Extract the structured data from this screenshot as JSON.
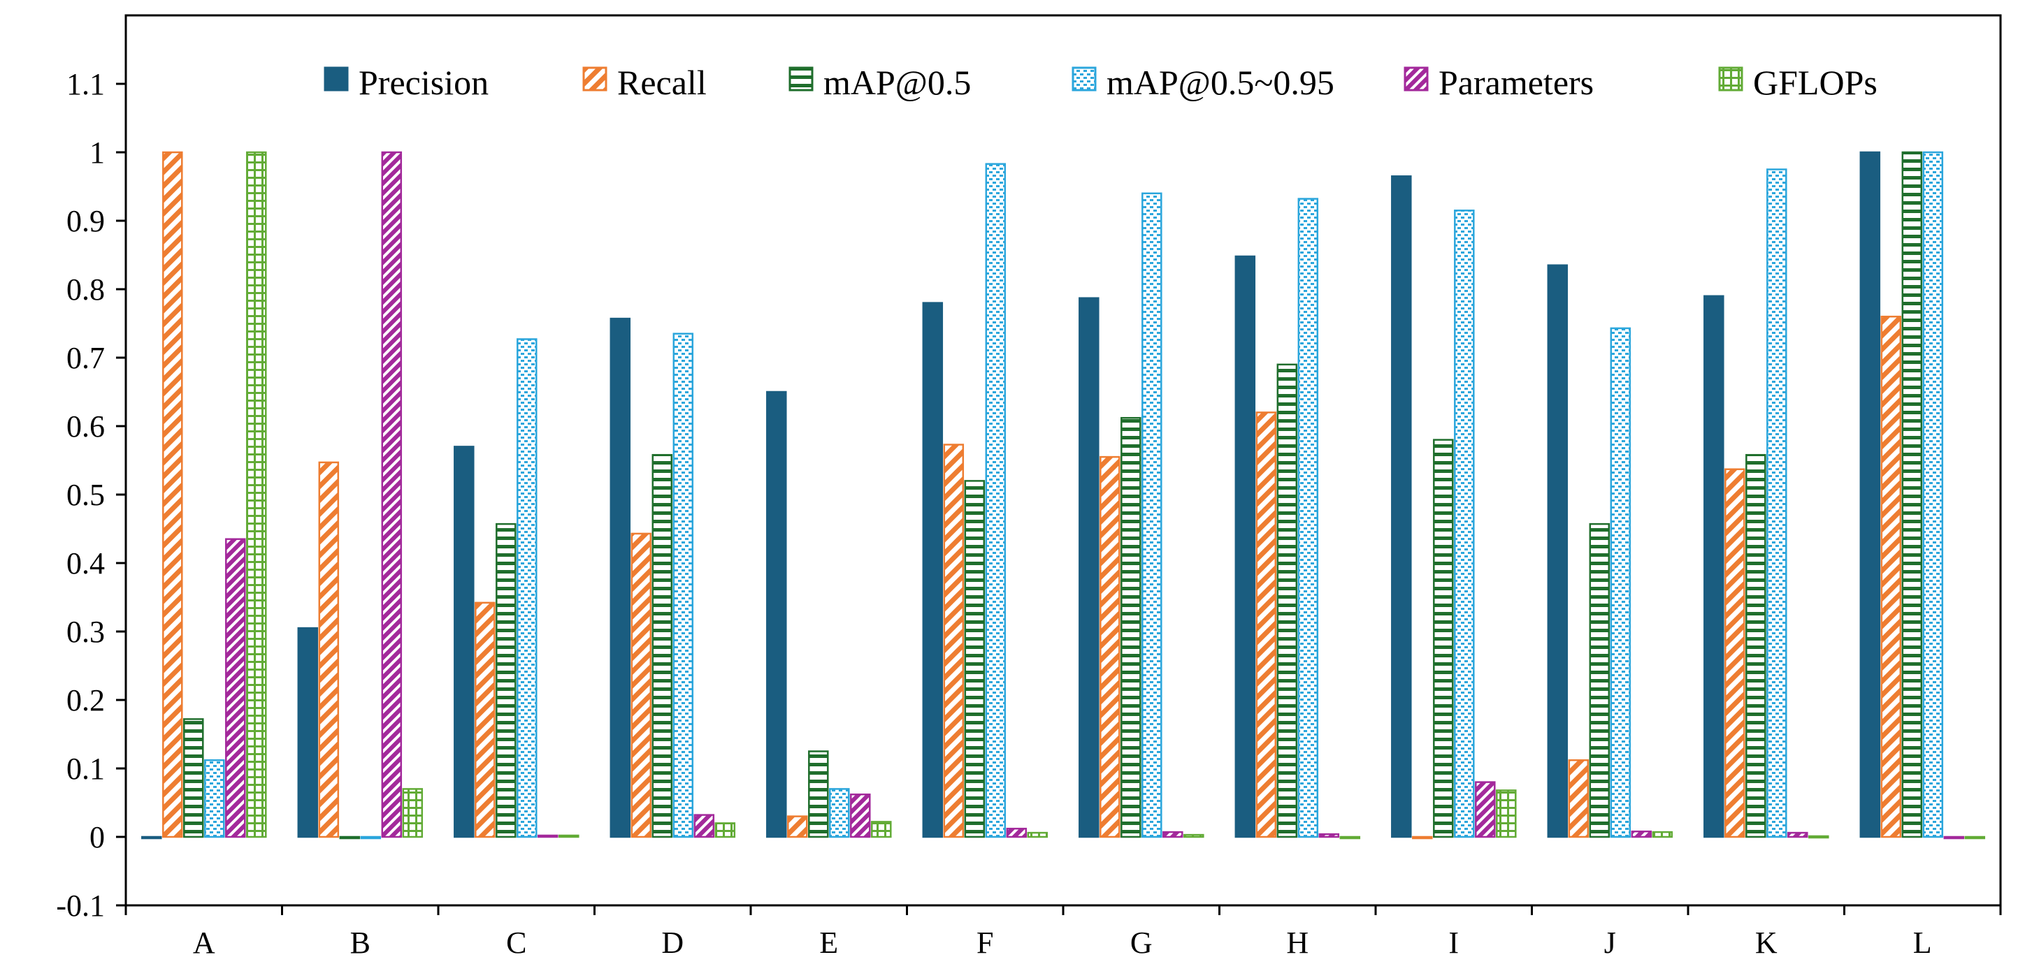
{
  "chart_data": {
    "type": "bar",
    "categories": [
      "A",
      "B",
      "C",
      "D",
      "E",
      "F",
      "G",
      "H",
      "I",
      "J",
      "K",
      "L"
    ],
    "series": [
      {
        "name": "Precision",
        "color": "#1a5d80",
        "pattern": "solid",
        "values": [
          0.0,
          0.305,
          0.57,
          0.757,
          0.65,
          0.78,
          0.787,
          0.848,
          0.965,
          0.835,
          0.79,
          1.0
        ]
      },
      {
        "name": "Recall",
        "color": "#ee7d31",
        "pattern": "diagonal",
        "values": [
          1.0,
          0.547,
          0.342,
          0.443,
          0.03,
          0.573,
          0.555,
          0.62,
          0.0,
          0.112,
          0.537,
          0.76
        ]
      },
      {
        "name": "mAP@0.5",
        "color": "#1f6e2c",
        "pattern": "horizontal",
        "values": [
          0.172,
          0.0,
          0.457,
          0.558,
          0.125,
          0.52,
          0.612,
          0.69,
          0.58,
          0.457,
          0.558,
          1.0
        ]
      },
      {
        "name": "mAP@0.5~0.95",
        "color": "#2ba6dc",
        "pattern": "dotted",
        "values": [
          0.112,
          0.0,
          0.727,
          0.735,
          0.07,
          0.983,
          0.94,
          0.932,
          0.915,
          0.743,
          0.975,
          1.0
        ]
      },
      {
        "name": "Parameters",
        "color": "#a3299b",
        "pattern": "diagonal-dense",
        "values": [
          0.435,
          1.0,
          0.002,
          0.032,
          0.062,
          0.012,
          0.007,
          0.004,
          0.08,
          0.008,
          0.006,
          0.0
        ]
      },
      {
        "name": "GFLOPs",
        "color": "#62ab36",
        "pattern": "grid",
        "values": [
          1.0,
          0.07,
          0.002,
          0.02,
          0.022,
          0.006,
          0.003,
          0.0,
          0.068,
          0.007,
          0.001,
          0.0
        ]
      }
    ],
    "ylim": [
      -0.1,
      1.2
    ],
    "yticks": [
      "-0.1",
      "0",
      "0.1",
      "0.2",
      "0.3",
      "0.4",
      "0.5",
      "0.6",
      "0.7",
      "0.8",
      "0.9",
      "1",
      "1.1"
    ],
    "ytick_values": [
      -0.1,
      0,
      0.1,
      0.2,
      0.3,
      0.4,
      0.5,
      0.6,
      0.7,
      0.8,
      0.9,
      1.0,
      1.1
    ],
    "title": "",
    "xlabel": "",
    "ylabel": "",
    "grid": false,
    "legend_position": "top-right"
  }
}
